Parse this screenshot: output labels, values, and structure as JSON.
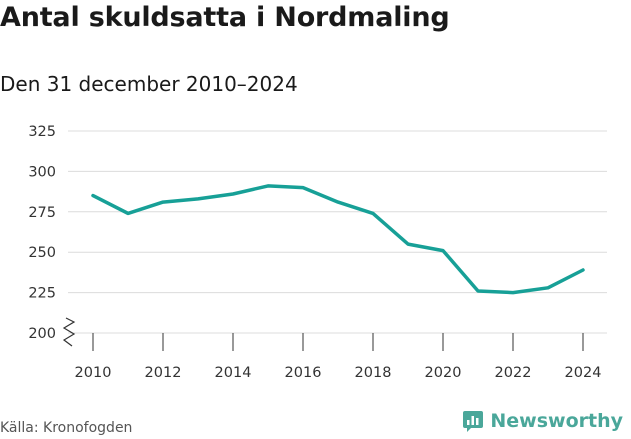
{
  "title": "Antal skuldsatta i Nordmaling",
  "subtitle": "Den 31 december 2010–2024",
  "source": "Källa: Kronofogden",
  "brand": {
    "name": "Newsworthy",
    "logo_icon": "bar-chart-speech-bubble-icon",
    "color": "#4aa79a"
  },
  "chart_data": {
    "type": "line",
    "title": "Antal skuldsatta i Nordmaling",
    "subtitle": "Den 31 december 2010–2024",
    "x": [
      2010,
      2011,
      2012,
      2013,
      2014,
      2015,
      2016,
      2017,
      2018,
      2019,
      2020,
      2021,
      2022,
      2023,
      2024
    ],
    "series": [
      {
        "values": [
          285,
          274,
          281,
          283,
          286,
          291,
          290,
          281,
          274,
          255,
          251,
          226,
          225,
          228,
          239
        ],
        "color": "#17a097"
      }
    ],
    "xticks": [
      "2010",
      "2012",
      "2014",
      "2016",
      "2018",
      "2020",
      "2022",
      "2024"
    ],
    "yticks": [
      "200",
      "225",
      "250",
      "275",
      "300",
      "325"
    ],
    "ylim": [
      200,
      325
    ],
    "xlim": [
      2010,
      2024
    ],
    "grid": true,
    "axis_break": true
  }
}
